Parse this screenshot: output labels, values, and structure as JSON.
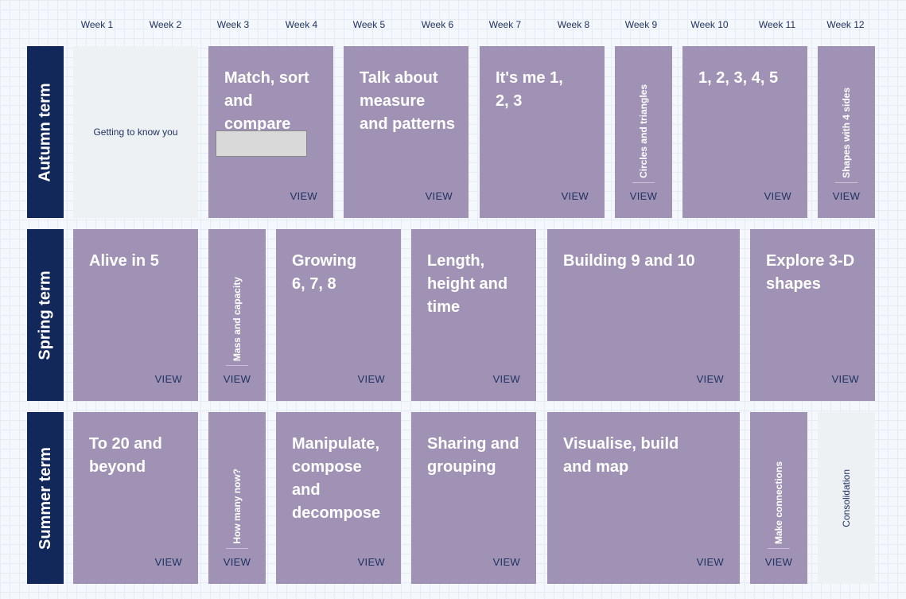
{
  "weeks": [
    "Week 1",
    "Week 2",
    "Week 3",
    "Week 4",
    "Week 5",
    "Week 6",
    "Week 7",
    "Week 8",
    "Week 9",
    "Week 10",
    "Week 11",
    "Week 12"
  ],
  "terms": {
    "autumn": "Autumn term",
    "spring": "Spring term",
    "summer": "Summer term"
  },
  "view_label": "VIEW",
  "autumn": {
    "getting_to_know": "Getting to know you",
    "match_sort": "Match, sort and compare",
    "talk_measure": "Talk about measure and patterns",
    "its_me": "It's me 1, 2, 3",
    "circles": "Circles and triangles",
    "one_to_five": "1, 2, 3, 4, 5",
    "shapes4": "Shapes with 4 sides"
  },
  "spring": {
    "alive5": "Alive in 5",
    "mass": "Mass and capacity",
    "growing": "Growing 6, 7, 8",
    "length": "Length, height and time",
    "building": "Building 9 and 10",
    "explore": "Explore 3-D shapes"
  },
  "summer": {
    "to20": "To 20 and beyond",
    "howmany": "How many now?",
    "manipulate": "Manipulate, compose and decompose",
    "sharing": "Sharing and grouping",
    "visualise": "Visualise, build and map",
    "connections": "Make connections",
    "consolidation": "Consolidation"
  }
}
